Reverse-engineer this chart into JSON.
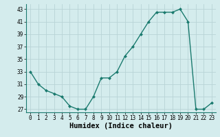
{
  "xlabel": "Humidex (Indice chaleur)",
  "x": [
    0,
    1,
    2,
    3,
    4,
    5,
    6,
    7,
    8,
    9,
    10,
    11,
    12,
    13,
    14,
    15,
    16,
    17,
    18,
    19,
    20,
    21,
    22,
    23
  ],
  "y": [
    33,
    31,
    30,
    29.5,
    29,
    27.5,
    27,
    27,
    29,
    32,
    32,
    33,
    35.5,
    37,
    39,
    41,
    42.5,
    42.5,
    42.5,
    43,
    41,
    27,
    27,
    28
  ],
  "ylim": [
    26.5,
    43.8
  ],
  "yticks": [
    27,
    29,
    31,
    33,
    35,
    37,
    39,
    41,
    43
  ],
  "xticks": [
    0,
    1,
    2,
    3,
    4,
    5,
    6,
    7,
    8,
    9,
    10,
    11,
    12,
    13,
    14,
    15,
    16,
    17,
    18,
    19,
    20,
    21,
    22,
    23
  ],
  "line_color": "#1a7a6e",
  "marker": "D",
  "marker_size": 2.0,
  "line_width": 1.0,
  "bg_color": "#d4eced",
  "grid_color": "#b8d4d6",
  "tick_fontsize": 5.5,
  "xlabel_fontsize": 7.5,
  "xlim": [
    -0.5,
    23.5
  ]
}
